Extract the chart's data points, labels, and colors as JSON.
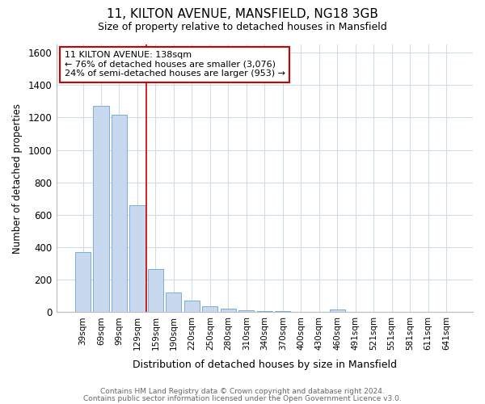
{
  "title_line1": "11, KILTON AVENUE, MANSFIELD, NG18 3GB",
  "title_line2": "Size of property relative to detached houses in Mansfield",
  "xlabel": "Distribution of detached houses by size in Mansfield",
  "ylabel": "Number of detached properties",
  "categories": [
    "39sqm",
    "69sqm",
    "99sqm",
    "129sqm",
    "159sqm",
    "190sqm",
    "220sqm",
    "250sqm",
    "280sqm",
    "310sqm",
    "340sqm",
    "370sqm",
    "400sqm",
    "430sqm",
    "460sqm",
    "491sqm",
    "521sqm",
    "551sqm",
    "581sqm",
    "611sqm",
    "641sqm"
  ],
  "values": [
    370,
    1270,
    1215,
    660,
    265,
    120,
    70,
    35,
    20,
    10,
    5,
    5,
    3,
    0,
    15,
    3,
    0,
    0,
    0,
    0,
    0
  ],
  "bar_color": "#c8d8ee",
  "bar_edge_color": "#7aadd4",
  "red_line_x": 3.5,
  "annotation_text": "11 KILTON AVENUE: 138sqm\n← 76% of detached houses are smaller (3,076)\n24% of semi-detached houses are larger (953) →",
  "annotation_box_color": "#ffffff",
  "annotation_box_edge": "#cc0000",
  "red_line_color": "#cc0000",
  "ylim": [
    0,
    1650
  ],
  "yticks": [
    0,
    200,
    400,
    600,
    800,
    1000,
    1200,
    1400,
    1600
  ],
  "footer_line1": "Contains HM Land Registry data © Crown copyright and database right 2024.",
  "footer_line2": "Contains public sector information licensed under the Open Government Licence v3.0.",
  "bg_color": "#ffffff",
  "plot_bg_color": "#ffffff",
  "grid_color": "#d0dce8"
}
